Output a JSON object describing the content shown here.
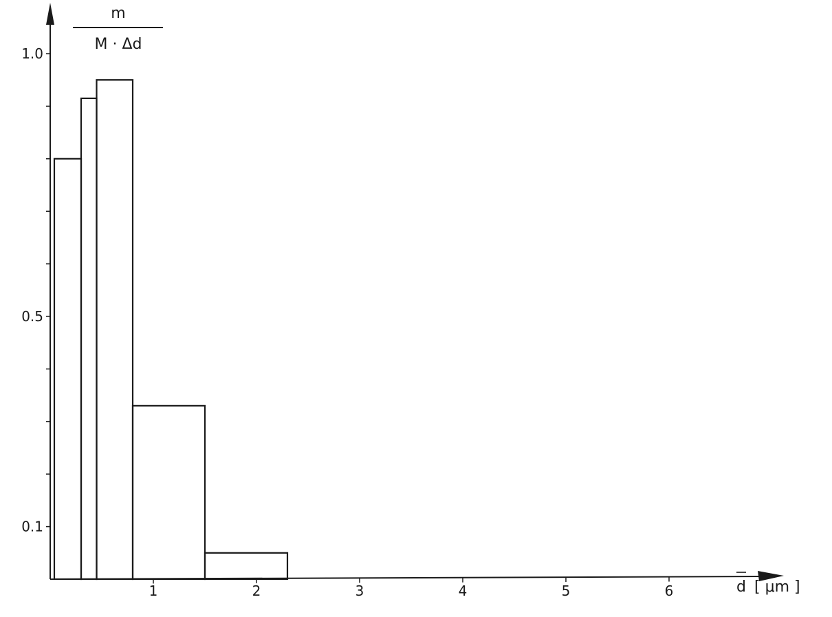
{
  "chart_data": {
    "type": "bar",
    "title": "",
    "ylabel_numerator": "m",
    "ylabel_denominator": "M  · Δd",
    "xlabel_symbol": "d",
    "xlabel_unit": "[ μm ]",
    "xlim": [
      0,
      6.6
    ],
    "ylim": [
      0,
      1.05
    ],
    "x_ticks": [
      {
        "value": 1,
        "label": "1"
      },
      {
        "value": 2,
        "label": "2"
      },
      {
        "value": 3,
        "label": "3"
      },
      {
        "value": 4,
        "label": "4"
      },
      {
        "value": 5,
        "label": "5"
      },
      {
        "value": 6,
        "label": "6"
      }
    ],
    "y_ticks": [
      {
        "value": 0.1,
        "label": "0.1"
      },
      {
        "value": 0.2,
        "label": ""
      },
      {
        "value": 0.3,
        "label": ""
      },
      {
        "value": 0.4,
        "label": ""
      },
      {
        "value": 0.5,
        "label": "0.5"
      },
      {
        "value": 0.6,
        "label": ""
      },
      {
        "value": 0.7,
        "label": ""
      },
      {
        "value": 0.8,
        "label": ""
      },
      {
        "value": 0.9,
        "label": ""
      },
      {
        "value": 1.0,
        "label": "1.0"
      }
    ],
    "bins": [
      {
        "x0": 0.04,
        "x1": 0.3,
        "value": 0.8
      },
      {
        "x0": 0.3,
        "x1": 0.45,
        "value": 0.915
      },
      {
        "x0": 0.45,
        "x1": 0.8,
        "value": 0.95
      },
      {
        "x0": 0.8,
        "x1": 1.5,
        "value": 0.33
      },
      {
        "x0": 1.5,
        "x1": 2.3,
        "value": 0.05
      }
    ]
  }
}
